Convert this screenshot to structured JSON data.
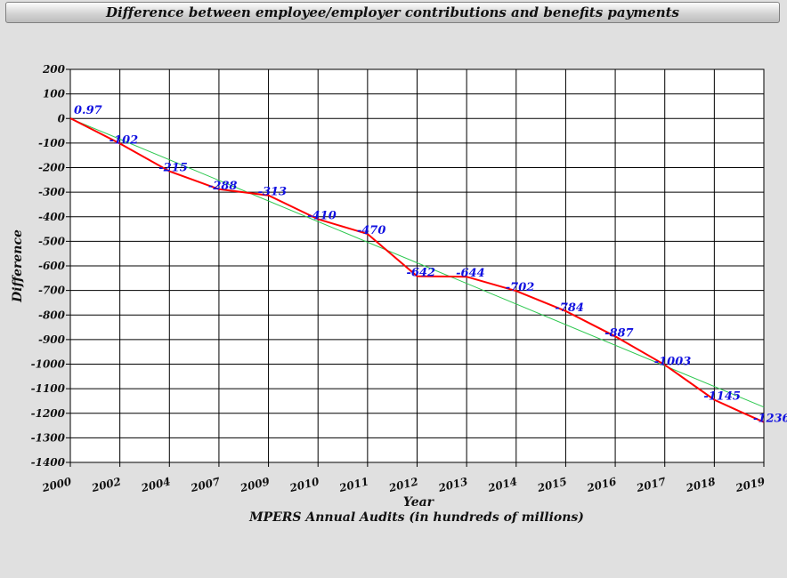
{
  "chart_data": {
    "type": "line",
    "title": "Difference between employee/employer contributions and benefits payments",
    "xlabel": "Year",
    "subtitle": "MPERS Annual Audits (in hundreds of millions)",
    "ylabel": "Difference",
    "ylim": [
      -1400,
      200
    ],
    "y_ticks": [
      "200",
      "100",
      "0",
      "-100",
      "-200",
      "-300",
      "-400",
      "-500",
      "-600",
      "-700",
      "-800",
      "-900",
      "-1000",
      "-1100",
      "-1200",
      "-1300",
      "-1400"
    ],
    "x_tick_labels": [
      "2000",
      "2002",
      "2004",
      "2007",
      "2009",
      "2010",
      "2011",
      "2012",
      "2013",
      "2014",
      "2015",
      "2016",
      "2017",
      "2018",
      "2019"
    ],
    "grid": true,
    "series": [
      {
        "color": "#ff0000",
        "x": [
          2000.0,
          2002.0,
          2004.0,
          2007.0,
          2009.0,
          2010.0,
          2011.0,
          2012.0,
          2013.0,
          2014.0,
          2015.0,
          2016.0,
          2017.0,
          2018.0,
          2018.6,
          2019.0
        ],
        "values": [
          0.97,
          -102,
          -215,
          -288,
          -313,
          -410,
          -470,
          -642,
          -644,
          -702,
          -784,
          -887,
          -1003,
          -1145,
          -1200,
          -1236
        ],
        "labels": [
          "0.97",
          "-102",
          "-215",
          "-288",
          "-313",
          "-410",
          "-470",
          "-642",
          "-644",
          "-702",
          "-784",
          "-887",
          "-1003",
          "-1145",
          "",
          "-1236"
        ]
      },
      {
        "color": "#2ec850",
        "x": [
          2000.0,
          2019.0
        ],
        "values": [
          0,
          -1175
        ]
      }
    ]
  }
}
